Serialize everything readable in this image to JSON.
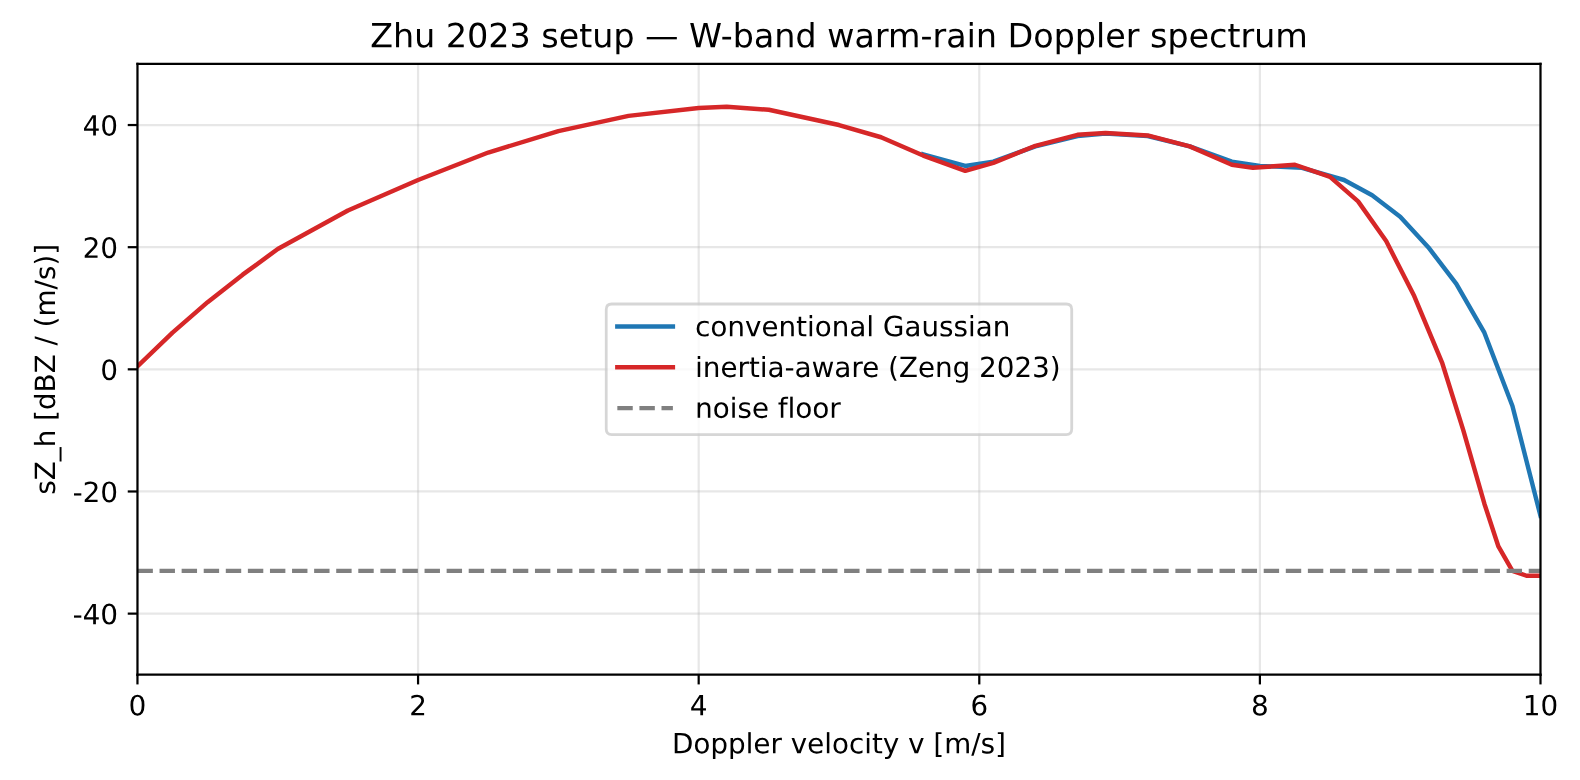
{
  "chart_data": {
    "type": "line",
    "title": "Zhu 2023 setup — W-band warm-rain Doppler spectrum",
    "xlabel": "Doppler velocity v [m/s]",
    "ylabel": "sZ_h [dBZ / (m/s)]",
    "xlim": [
      0,
      10
    ],
    "xticks": [
      0,
      2,
      4,
      6,
      8,
      10
    ],
    "ylim": [
      -50,
      50
    ],
    "yticks": [
      -40,
      -20,
      0,
      20,
      40
    ],
    "grid": true,
    "legend": "center",
    "line_style": "solid",
    "series": [
      {
        "name": "conventional Gaussian",
        "color": "#1f77b4",
        "x": [
          5.6,
          5.9,
          6.1,
          6.4,
          6.7,
          6.9,
          7.2,
          7.5,
          7.8,
          8,
          8.3,
          8.6,
          8.8,
          9,
          9.2,
          9.4,
          9.6,
          9.8,
          10
        ],
        "values": [
          35.2,
          33.3,
          34,
          36.5,
          38.2,
          38.6,
          38.2,
          36.5,
          34,
          33.3,
          33,
          31,
          28.5,
          25,
          20,
          14,
          6,
          -6,
          -24
        ]
      },
      {
        "name": "inertia-aware (Zeng 2023)",
        "color": "#d62728",
        "x": [
          0,
          0.25,
          0.5,
          0.75,
          1,
          1.5,
          2,
          2.5,
          3,
          3.5,
          4,
          4.2,
          4.5,
          5,
          5.3,
          5.6,
          5.9,
          6.1,
          6.4,
          6.7,
          6.9,
          7.2,
          7.5,
          7.8,
          7.95,
          8.25,
          8.5,
          8.7,
          8.9,
          9.1,
          9.3,
          9.45,
          9.6,
          9.7,
          9.8,
          9.9,
          10
        ],
        "values": [
          0.5,
          6,
          11,
          15.5,
          19.7,
          26,
          31,
          35.5,
          39,
          41.5,
          42.8,
          43,
          42.5,
          40,
          38,
          35,
          32.5,
          33.8,
          36.6,
          38.4,
          38.7,
          38.3,
          36.5,
          33.5,
          33,
          33.5,
          31.5,
          27.5,
          21,
          12,
          1,
          -10,
          -22,
          -29,
          -33,
          -33.8,
          -33.8
        ]
      }
    ],
    "ref_lines": [
      {
        "axis": "y",
        "value": -33,
        "label": "noise floor",
        "color": "#808080",
        "line_style": "dashed"
      }
    ]
  }
}
